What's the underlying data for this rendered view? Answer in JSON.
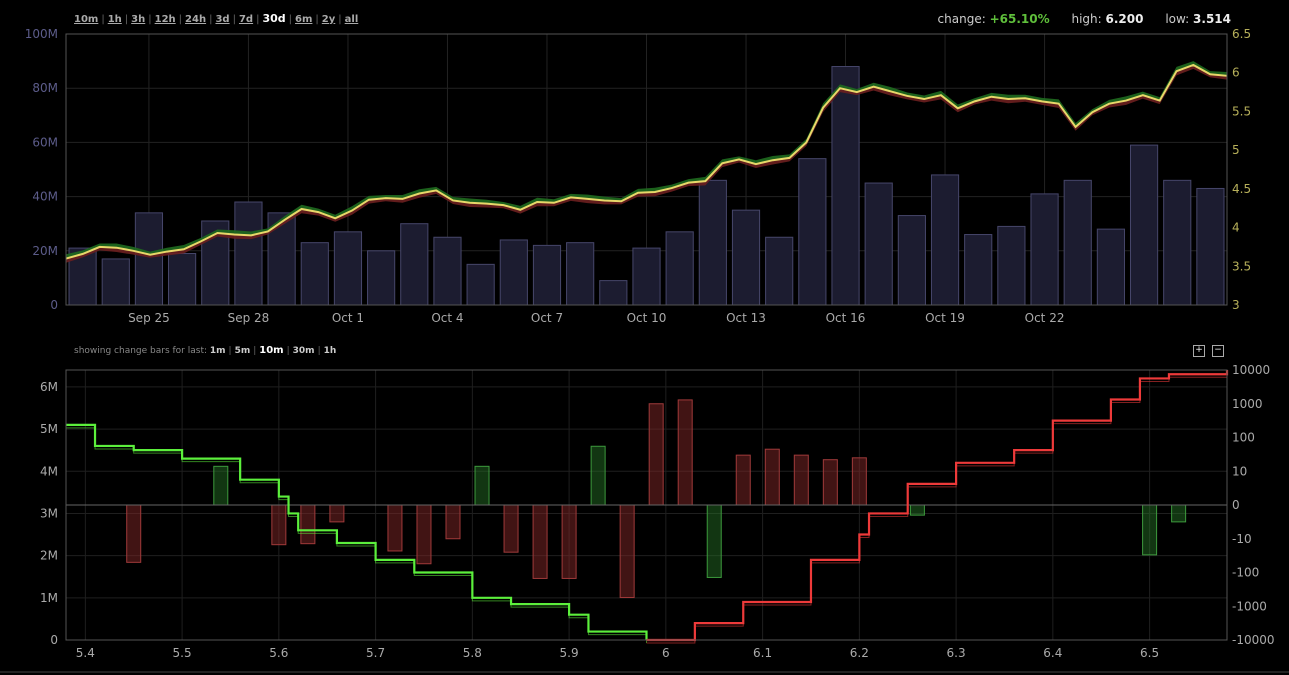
{
  "range_selector": {
    "options": [
      "10m",
      "1h",
      "3h",
      "12h",
      "24h",
      "3d",
      "7d",
      "30d",
      "6m",
      "2y",
      "all"
    ],
    "selected": "30d"
  },
  "stats": {
    "change_label": "change:",
    "change_value": "+65.10%",
    "high_label": "high:",
    "high_value": "6.200",
    "low_label": "low:",
    "low_value": "3.514"
  },
  "change_bars": {
    "label": "showing change bars for last:",
    "options": [
      "1m",
      "5m",
      "10m",
      "30m",
      "1h"
    ],
    "selected": "10m"
  },
  "zoom": {
    "in": "+",
    "out": "−"
  },
  "colors": {
    "price_line": "#e8d86a",
    "up_fill": "#1f6b1f",
    "down_fill": "#6b1f1f",
    "volume_bar": "#1c1c30",
    "volume_bar_stroke": "#46466a",
    "bids": "#5cf03c",
    "asks": "#ee3a3a",
    "axis_left_price": "#5c5c8a",
    "axis_right_price": "#b7b05a"
  },
  "chart_data": [
    {
      "type": "line",
      "title": "",
      "x_ticks": [
        "Sep 25",
        "Sep 28",
        "Oct 1",
        "Oct 4",
        "Oct 7",
        "Oct 10",
        "Oct 13",
        "Oct 16",
        "Oct 19",
        "Oct 22"
      ],
      "volume": {
        "axis": "left",
        "ylim": [
          0,
          100000000
        ],
        "y_ticks": [
          "0",
          "20M",
          "40M",
          "60M",
          "80M",
          "100M"
        ],
        "values": [
          21,
          17,
          34,
          19,
          31,
          38,
          34,
          23,
          27,
          20,
          30,
          25,
          15,
          24,
          22,
          23,
          9,
          21,
          27,
          46,
          35,
          25,
          54,
          88,
          45,
          33,
          48,
          26,
          29,
          41,
          46,
          28,
          59,
          46,
          43
        ]
      },
      "price": {
        "axis": "right",
        "ylim": [
          3,
          6.5
        ],
        "y_ticks": [
          "3",
          "3.5",
          "4",
          "4.5",
          "5",
          "5.5",
          "6",
          "6.5"
        ],
        "values": [
          3.6,
          3.66,
          3.75,
          3.74,
          3.7,
          3.65,
          3.69,
          3.72,
          3.82,
          3.93,
          3.91,
          3.9,
          3.95,
          4.1,
          4.24,
          4.2,
          4.12,
          4.22,
          4.36,
          4.38,
          4.37,
          4.44,
          4.48,
          4.35,
          4.32,
          4.31,
          4.29,
          4.23,
          4.33,
          4.32,
          4.39,
          4.37,
          4.35,
          4.34,
          4.45,
          4.46,
          4.51,
          4.58,
          4.6,
          4.83,
          4.88,
          4.82,
          4.87,
          4.9,
          5.1,
          5.55,
          5.8,
          5.75,
          5.82,
          5.76,
          5.7,
          5.66,
          5.71,
          5.54,
          5.63,
          5.69,
          5.66,
          5.67,
          5.63,
          5.6,
          5.3,
          5.49,
          5.6,
          5.64,
          5.71,
          5.64,
          6.02,
          6.1,
          5.98,
          5.96
        ]
      }
    },
    {
      "type": "area",
      "title": "",
      "x_ticks": [
        "5.4",
        "5.5",
        "5.6",
        "5.7",
        "5.8",
        "5.9",
        "6",
        "6.1",
        "6.2",
        "6.3",
        "6.4",
        "6.5"
      ],
      "xlim": [
        5.38,
        6.58
      ],
      "depth_axis": {
        "axis": "left",
        "ylim": [
          0,
          6400000
        ],
        "y_ticks": [
          "0",
          "1M",
          "2M",
          "3M",
          "4M",
          "5M",
          "6M"
        ]
      },
      "change_axis": {
        "axis": "right",
        "y_ticks": [
          "-10000",
          "-1000",
          "-100",
          "-10",
          "0",
          "10",
          "100",
          "1000",
          "10000"
        ]
      },
      "series": [
        {
          "name": "bids",
          "x": [
            5.38,
            5.4,
            5.41,
            5.45,
            5.5,
            5.56,
            5.6,
            5.61,
            5.62,
            5.66,
            5.7,
            5.74,
            5.8,
            5.84,
            5.9,
            5.92,
            5.98
          ],
          "y": [
            5100000,
            5100000,
            4600000,
            4500000,
            4300000,
            3800000,
            3400000,
            3000000,
            2600000,
            2300000,
            1900000,
            1600000,
            1000000,
            850000,
            600000,
            200000,
            0
          ]
        },
        {
          "name": "asks",
          "x": [
            5.98,
            6.03,
            6.08,
            6.15,
            6.2,
            6.21,
            6.25,
            6.3,
            6.36,
            6.4,
            6.46,
            6.49,
            6.52,
            6.58
          ],
          "y": [
            0,
            400000,
            900000,
            1900000,
            2500000,
            3000000,
            3700000,
            4200000,
            4500000,
            5200000,
            5700000,
            6200000,
            6300000,
            6400000
          ]
        }
      ],
      "change_bars": [
        {
          "x": 5.45,
          "v": -50
        },
        {
          "x": 5.54,
          "v": 14
        },
        {
          "x": 5.6,
          "v": -15
        },
        {
          "x": 5.63,
          "v": -14
        },
        {
          "x": 5.66,
          "v": -5
        },
        {
          "x": 5.72,
          "v": -23
        },
        {
          "x": 5.75,
          "v": -55
        },
        {
          "x": 5.78,
          "v": -10
        },
        {
          "x": 5.81,
          "v": 14
        },
        {
          "x": 5.84,
          "v": -25
        },
        {
          "x": 5.87,
          "v": -150
        },
        {
          "x": 5.9,
          "v": -150
        },
        {
          "x": 5.93,
          "v": 55
        },
        {
          "x": 5.96,
          "v": -550
        },
        {
          "x": 5.99,
          "v": 1000
        },
        {
          "x": 6.02,
          "v": 1300
        },
        {
          "x": 6.05,
          "v": -140
        },
        {
          "x": 6.08,
          "v": 30
        },
        {
          "x": 6.11,
          "v": 45
        },
        {
          "x": 6.14,
          "v": 30
        },
        {
          "x": 6.17,
          "v": 22
        },
        {
          "x": 6.2,
          "v": 25
        },
        {
          "x": 6.26,
          "v": -3
        },
        {
          "x": 6.5,
          "v": -30
        },
        {
          "x": 6.53,
          "v": -5
        }
      ]
    }
  ]
}
